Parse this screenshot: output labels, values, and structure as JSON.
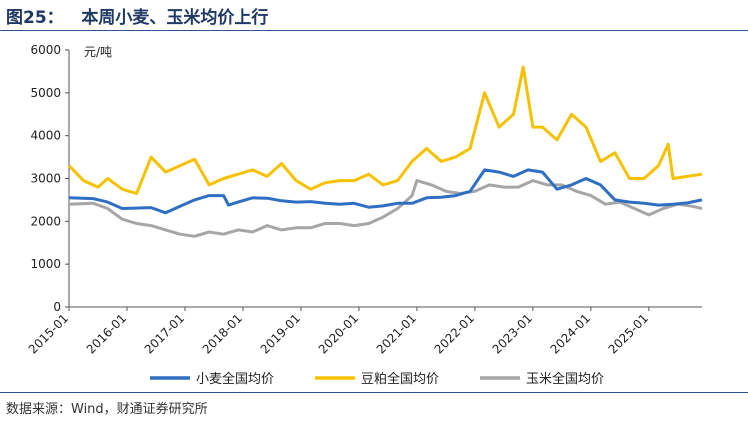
{
  "header": {
    "title": "图25：   本周小麦、玉米均价上行"
  },
  "footer": {
    "source": "数据来源：Wind，财通证券研究所"
  },
  "chart_data": {
    "type": "line",
    "unit_label": "元/吨",
    "ylim": [
      0,
      6000
    ],
    "yticks": [
      "0",
      "1000",
      "2000",
      "3000",
      "4000",
      "5000",
      "6000"
    ],
    "xlim": [
      "2015-01",
      "2025-12"
    ],
    "xticks": [
      "2015-01",
      "2016-01",
      "2017-01",
      "2018-01",
      "2019-01",
      "2020-01",
      "2021-01",
      "2022-01",
      "2023-01",
      "2024-01",
      "2025-01"
    ],
    "legend_position": "bottom",
    "grid": false,
    "series": [
      {
        "name": "小麦全国均价",
        "color": "#2e6fc4",
        "points": [
          [
            "2015-01",
            2550
          ],
          [
            "2015-06",
            2530
          ],
          [
            "2015-09",
            2450
          ],
          [
            "2015-12",
            2300
          ],
          [
            "2016-06",
            2320
          ],
          [
            "2016-09",
            2200
          ],
          [
            "2016-12",
            2350
          ],
          [
            "2017-03",
            2500
          ],
          [
            "2017-06",
            2600
          ],
          [
            "2017-09",
            2600
          ],
          [
            "2017-10",
            2380
          ],
          [
            "2017-12",
            2450
          ],
          [
            "2018-03",
            2550
          ],
          [
            "2018-06",
            2540
          ],
          [
            "2018-09",
            2480
          ],
          [
            "2018-12",
            2450
          ],
          [
            "2019-03",
            2460
          ],
          [
            "2019-06",
            2420
          ],
          [
            "2019-09",
            2400
          ],
          [
            "2019-12",
            2420
          ],
          [
            "2020-03",
            2330
          ],
          [
            "2020-06",
            2360
          ],
          [
            "2020-09",
            2420
          ],
          [
            "2020-12",
            2420
          ],
          [
            "2021-03",
            2550
          ],
          [
            "2021-06",
            2560
          ],
          [
            "2021-09",
            2600
          ],
          [
            "2021-12",
            2700
          ],
          [
            "2022-03",
            3200
          ],
          [
            "2022-06",
            3150
          ],
          [
            "2022-09",
            3050
          ],
          [
            "2022-12",
            3200
          ],
          [
            "2023-03",
            3150
          ],
          [
            "2023-06",
            2750
          ],
          [
            "2023-09",
            2850
          ],
          [
            "2023-12",
            3000
          ],
          [
            "2024-03",
            2850
          ],
          [
            "2024-06",
            2500
          ],
          [
            "2024-09",
            2450
          ],
          [
            "2024-12",
            2420
          ],
          [
            "2025-03",
            2380
          ],
          [
            "2025-06",
            2400
          ],
          [
            "2025-09",
            2430
          ],
          [
            "2025-12",
            2500
          ]
        ]
      },
      {
        "name": "豆粕全国均价",
        "color": "#f5c100",
        "points": [
          [
            "2015-01",
            3300
          ],
          [
            "2015-04",
            2950
          ],
          [
            "2015-07",
            2800
          ],
          [
            "2015-09",
            3000
          ],
          [
            "2015-12",
            2750
          ],
          [
            "2016-03",
            2650
          ],
          [
            "2016-06",
            3500
          ],
          [
            "2016-09",
            3150
          ],
          [
            "2016-12",
            3300
          ],
          [
            "2017-03",
            3450
          ],
          [
            "2017-06",
            2850
          ],
          [
            "2017-09",
            3000
          ],
          [
            "2017-12",
            3100
          ],
          [
            "2018-03",
            3200
          ],
          [
            "2018-06",
            3050
          ],
          [
            "2018-09",
            3350
          ],
          [
            "2018-12",
            2950
          ],
          [
            "2019-03",
            2750
          ],
          [
            "2019-06",
            2900
          ],
          [
            "2019-09",
            2950
          ],
          [
            "2019-12",
            2950
          ],
          [
            "2020-03",
            3100
          ],
          [
            "2020-06",
            2850
          ],
          [
            "2020-09",
            2950
          ],
          [
            "2020-12",
            3400
          ],
          [
            "2021-03",
            3700
          ],
          [
            "2021-06",
            3400
          ],
          [
            "2021-09",
            3500
          ],
          [
            "2021-12",
            3700
          ],
          [
            "2022-03",
            5000
          ],
          [
            "2022-06",
            4200
          ],
          [
            "2022-09",
            4500
          ],
          [
            "2022-11",
            5600
          ],
          [
            "2023-01",
            4200
          ],
          [
            "2023-03",
            4200
          ],
          [
            "2023-06",
            3900
          ],
          [
            "2023-09",
            4500
          ],
          [
            "2023-12",
            4200
          ],
          [
            "2024-03",
            3400
          ],
          [
            "2024-06",
            3600
          ],
          [
            "2024-09",
            3000
          ],
          [
            "2024-12",
            3000
          ],
          [
            "2025-03",
            3300
          ],
          [
            "2025-05",
            3800
          ],
          [
            "2025-06",
            3000
          ],
          [
            "2025-09",
            3050
          ],
          [
            "2025-12",
            3100
          ]
        ]
      },
      {
        "name": "玉米全国均价",
        "color": "#a6a6a6",
        "points": [
          [
            "2015-01",
            2400
          ],
          [
            "2015-06",
            2420
          ],
          [
            "2015-09",
            2300
          ],
          [
            "2015-12",
            2050
          ],
          [
            "2016-03",
            1950
          ],
          [
            "2016-06",
            1900
          ],
          [
            "2016-09",
            1800
          ],
          [
            "2016-12",
            1700
          ],
          [
            "2017-03",
            1650
          ],
          [
            "2017-06",
            1750
          ],
          [
            "2017-09",
            1700
          ],
          [
            "2017-12",
            1800
          ],
          [
            "2018-03",
            1750
          ],
          [
            "2018-06",
            1900
          ],
          [
            "2018-09",
            1800
          ],
          [
            "2018-12",
            1850
          ],
          [
            "2019-03",
            1850
          ],
          [
            "2019-06",
            1950
          ],
          [
            "2019-09",
            1950
          ],
          [
            "2019-12",
            1900
          ],
          [
            "2020-03",
            1950
          ],
          [
            "2020-06",
            2100
          ],
          [
            "2020-09",
            2300
          ],
          [
            "2020-12",
            2600
          ],
          [
            "2021-01",
            2950
          ],
          [
            "2021-04",
            2850
          ],
          [
            "2021-07",
            2700
          ],
          [
            "2021-10",
            2650
          ],
          [
            "2022-01",
            2700
          ],
          [
            "2022-04",
            2850
          ],
          [
            "2022-07",
            2800
          ],
          [
            "2022-10",
            2800
          ],
          [
            "2023-01",
            2950
          ],
          [
            "2023-04",
            2850
          ],
          [
            "2023-07",
            2850
          ],
          [
            "2023-10",
            2700
          ],
          [
            "2024-01",
            2600
          ],
          [
            "2024-04",
            2400
          ],
          [
            "2024-07",
            2450
          ],
          [
            "2024-10",
            2300
          ],
          [
            "2025-01",
            2150
          ],
          [
            "2025-04",
            2300
          ],
          [
            "2025-07",
            2400
          ],
          [
            "2025-10",
            2350
          ],
          [
            "2025-12",
            2300
          ]
        ]
      }
    ]
  }
}
